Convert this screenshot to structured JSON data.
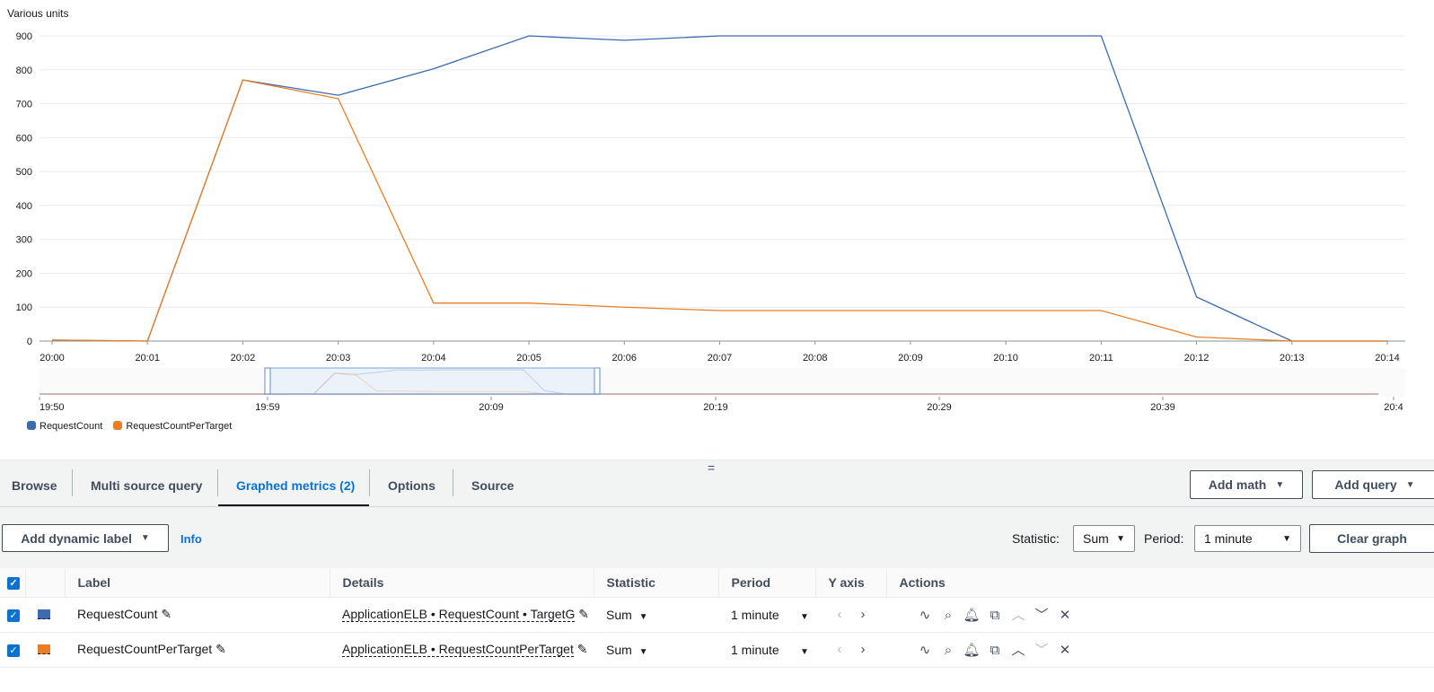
{
  "chart_data": {
    "type": "line",
    "ylabel": "Various units",
    "ylim": [
      0,
      900
    ],
    "yticks": [
      0,
      100,
      200,
      300,
      400,
      500,
      600,
      700,
      800,
      900
    ],
    "categories": [
      "20:00",
      "20:01",
      "20:02",
      "20:03",
      "20:04",
      "20:05",
      "20:06",
      "20:07",
      "20:08",
      "20:09",
      "20:10",
      "20:11",
      "20:12",
      "20:13",
      "20:14"
    ],
    "series": [
      {
        "name": "RequestCount",
        "color": "#3b6bb0",
        "values": [
          3,
          0,
          770,
          725,
          803,
          900,
          887,
          900,
          900,
          900,
          900,
          900,
          130,
          0,
          0
        ]
      },
      {
        "name": "RequestCountPerTarget",
        "color": "#ea7e27",
        "values": [
          3,
          0,
          770,
          715,
          112,
          112,
          100,
          90,
          90,
          90,
          90,
          90,
          12,
          0,
          0
        ]
      }
    ],
    "navigator_ticks": [
      "19:50",
      "19:59",
      "20:09",
      "20:19",
      "20:29",
      "20:39",
      "20:4"
    ],
    "grid": true,
    "legend": "bottom-left"
  },
  "tabs": [
    {
      "label": "Browse"
    },
    {
      "label": "Multi source query"
    },
    {
      "label": "Graphed metrics (2)",
      "active": true
    },
    {
      "label": "Options"
    },
    {
      "label": "Source"
    }
  ],
  "toolbar": {
    "add_math": "Add math",
    "add_query": "Add query",
    "add_dynamic_label": "Add dynamic label",
    "info": "Info",
    "statistic_label": "Statistic:",
    "statistic_value": "Sum",
    "period_label": "Period:",
    "period_value": "1 minute",
    "clear_graph": "Clear graph"
  },
  "table": {
    "headers": [
      "Label",
      "Details",
      "Statistic",
      "Period",
      "Y axis",
      "Actions"
    ],
    "rows": [
      {
        "label": "RequestCount",
        "details": "ApplicationELB • RequestCount • TargetG",
        "statistic": "Sum",
        "period": "1 minute",
        "color": "#3b6bb0"
      },
      {
        "label": "RequestCountPerTarget",
        "details": "ApplicationELB • RequestCountPerTarget",
        "statistic": "Sum",
        "period": "1 minute",
        "color": "#ea7e27"
      }
    ]
  }
}
